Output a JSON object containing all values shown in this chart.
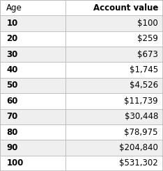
{
  "headers": [
    "Age",
    "Account value"
  ],
  "rows": [
    [
      "10",
      "$100"
    ],
    [
      "20",
      "$259"
    ],
    [
      "30",
      "$673"
    ],
    [
      "40",
      "$1,745"
    ],
    [
      "50",
      "$4,526"
    ],
    [
      "60",
      "$11,739"
    ],
    [
      "70",
      "$30,448"
    ],
    [
      "80",
      "$78,975"
    ],
    [
      "90",
      "$204,840"
    ],
    [
      "100",
      "$531,302"
    ]
  ],
  "header_bg": "#ffffff",
  "row_bg_odd": "#efefef",
  "row_bg_even": "#ffffff",
  "border_color": "#bbbbbb",
  "header_fontsize": 8.5,
  "cell_fontsize": 8.5,
  "col_split": 0.4,
  "fig_width": 2.34,
  "fig_height": 2.46,
  "dpi": 100
}
